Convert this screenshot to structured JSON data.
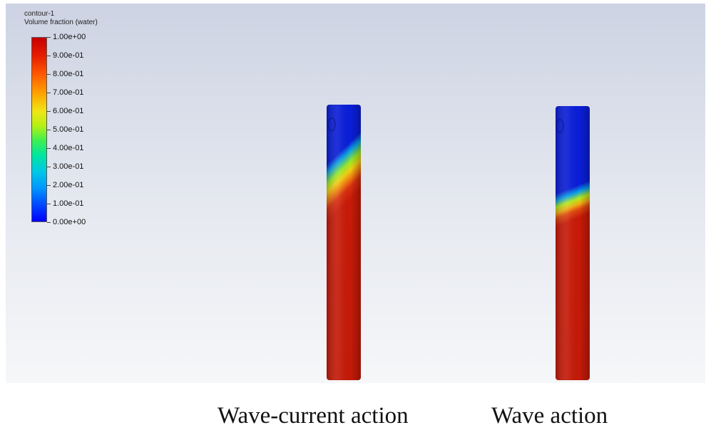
{
  "legend": {
    "name": "contour-1",
    "quantity": "Volume fraction (water)",
    "ticks": [
      "1.00e+00",
      "9.00e-01",
      "8.00e-01",
      "7.00e-01",
      "6.00e-01",
      "5.00e-01",
      "4.00e-01",
      "3.00e-01",
      "2.00e-01",
      "1.00e-01",
      "0.00e+00"
    ],
    "colors": {
      "water": "#c81a08",
      "air": "#0a1ed8",
      "interface": "#f0e614"
    }
  },
  "panels": [
    {
      "caption": "Wave-current action",
      "icon": "cylinder-contour-icon"
    },
    {
      "caption": "Wave action",
      "icon": "cylinder-contour-icon"
    }
  ]
}
